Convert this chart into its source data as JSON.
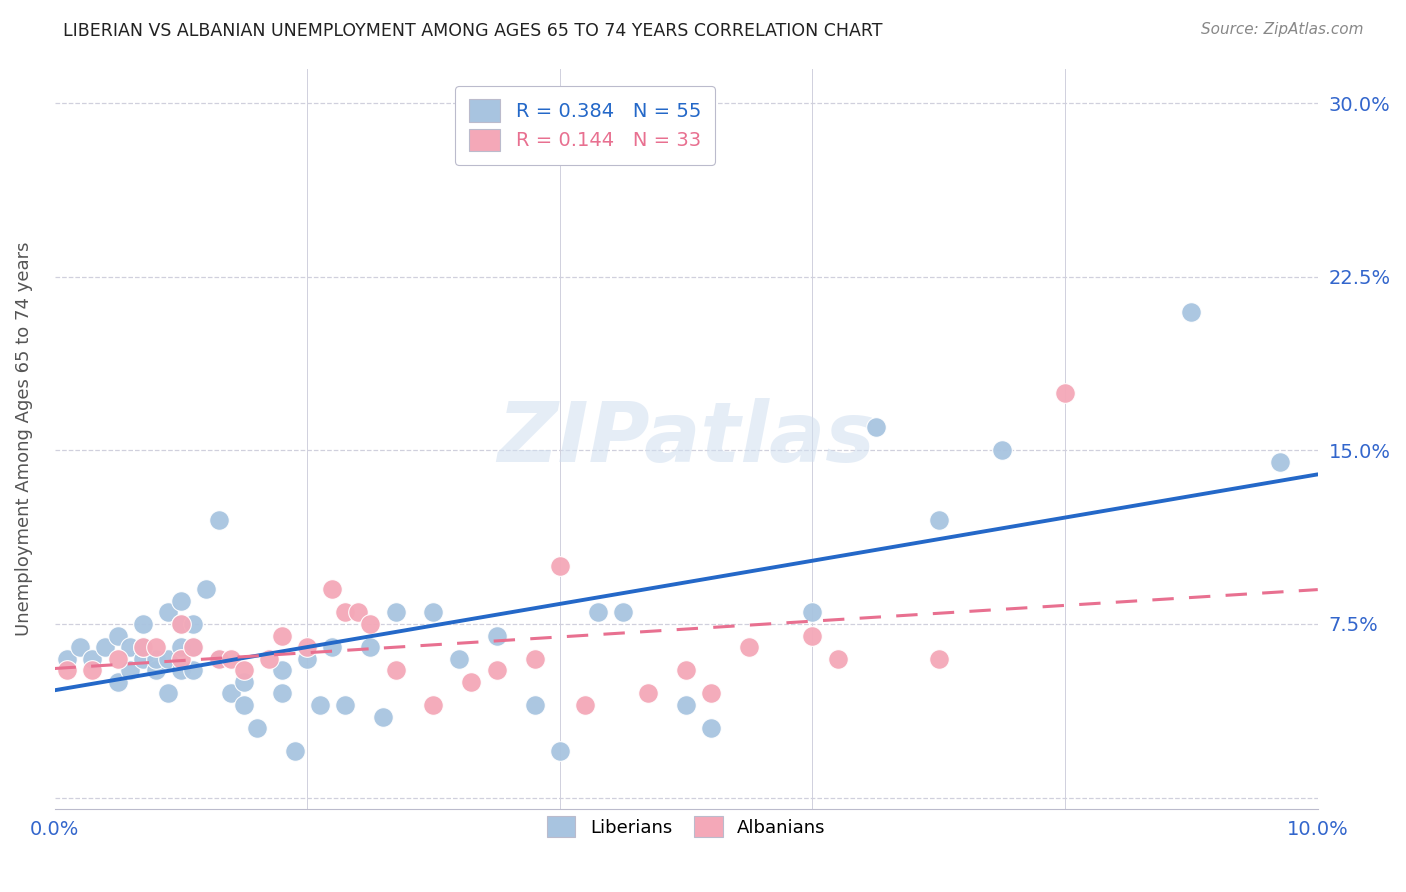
{
  "title": "LIBERIAN VS ALBANIAN UNEMPLOYMENT AMONG AGES 65 TO 74 YEARS CORRELATION CHART",
  "source": "Source: ZipAtlas.com",
  "ylabel": "Unemployment Among Ages 65 to 74 years",
  "xlim": [
    0.0,
    0.1
  ],
  "ylim": [
    -0.005,
    0.315
  ],
  "xticks": [
    0.0,
    0.02,
    0.04,
    0.06,
    0.08,
    0.1
  ],
  "xtick_labels": [
    "0.0%",
    "",
    "",
    "",
    "",
    "10.0%"
  ],
  "yticks": [
    0.0,
    0.075,
    0.15,
    0.225,
    0.3
  ],
  "ytick_labels_right": [
    "",
    "7.5%",
    "15.0%",
    "22.5%",
    "30.0%"
  ],
  "liberian_R": 0.384,
  "liberian_N": 55,
  "albanian_R": 0.144,
  "albanian_N": 33,
  "liberian_color": "#a8c4e0",
  "albanian_color": "#f4a8b8",
  "liberian_line_color": "#2468c8",
  "albanian_line_color": "#e87090",
  "grid_color": "#d0d0dd",
  "watermark_text": "ZIPatlas",
  "liberian_x": [
    0.001,
    0.002,
    0.003,
    0.004,
    0.005,
    0.005,
    0.006,
    0.006,
    0.007,
    0.007,
    0.007,
    0.008,
    0.008,
    0.009,
    0.009,
    0.009,
    0.01,
    0.01,
    0.01,
    0.01,
    0.011,
    0.011,
    0.011,
    0.012,
    0.013,
    0.013,
    0.014,
    0.015,
    0.015,
    0.016,
    0.018,
    0.018,
    0.019,
    0.02,
    0.021,
    0.022,
    0.023,
    0.025,
    0.026,
    0.027,
    0.03,
    0.032,
    0.035,
    0.038,
    0.04,
    0.043,
    0.045,
    0.05,
    0.052,
    0.06,
    0.065,
    0.07,
    0.075,
    0.09,
    0.097
  ],
  "liberian_y": [
    0.06,
    0.065,
    0.06,
    0.065,
    0.05,
    0.07,
    0.055,
    0.065,
    0.06,
    0.065,
    0.075,
    0.055,
    0.06,
    0.045,
    0.06,
    0.08,
    0.055,
    0.065,
    0.075,
    0.085,
    0.055,
    0.065,
    0.075,
    0.09,
    0.06,
    0.12,
    0.045,
    0.05,
    0.04,
    0.03,
    0.055,
    0.045,
    0.02,
    0.06,
    0.04,
    0.065,
    0.04,
    0.065,
    0.035,
    0.08,
    0.08,
    0.06,
    0.07,
    0.04,
    0.02,
    0.08,
    0.08,
    0.04,
    0.03,
    0.08,
    0.16,
    0.12,
    0.15,
    0.21,
    0.145
  ],
  "albanian_x": [
    0.001,
    0.003,
    0.005,
    0.007,
    0.008,
    0.01,
    0.01,
    0.011,
    0.013,
    0.014,
    0.015,
    0.017,
    0.018,
    0.02,
    0.022,
    0.023,
    0.024,
    0.025,
    0.027,
    0.03,
    0.033,
    0.035,
    0.038,
    0.04,
    0.042,
    0.047,
    0.05,
    0.052,
    0.055,
    0.06,
    0.062,
    0.07,
    0.08
  ],
  "albanian_y": [
    0.055,
    0.055,
    0.06,
    0.065,
    0.065,
    0.06,
    0.075,
    0.065,
    0.06,
    0.06,
    0.055,
    0.06,
    0.07,
    0.065,
    0.09,
    0.08,
    0.08,
    0.075,
    0.055,
    0.04,
    0.05,
    0.055,
    0.06,
    0.1,
    0.04,
    0.045,
    0.055,
    0.045,
    0.065,
    0.07,
    0.06,
    0.06,
    0.175
  ]
}
